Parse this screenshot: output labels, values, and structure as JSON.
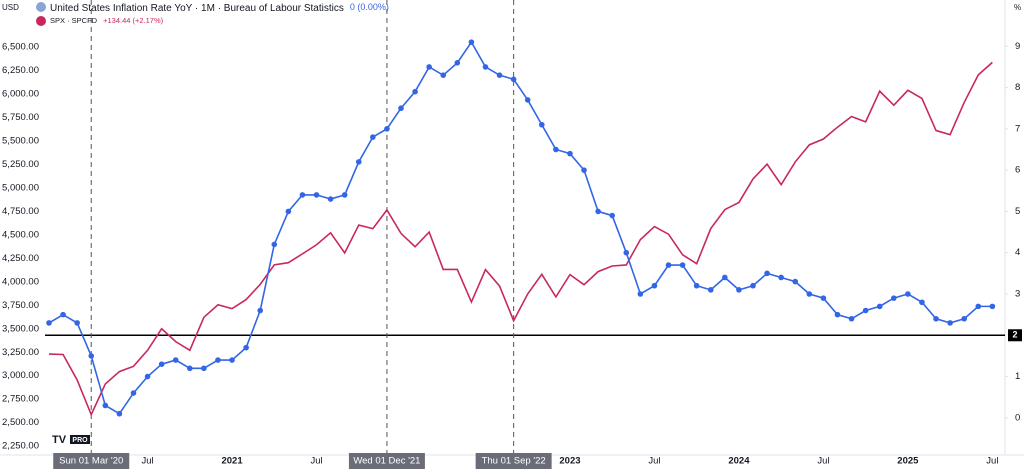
{
  "chart_data": {
    "type": "line",
    "y_unit": "USD",
    "y2_unit": "%",
    "categories": [
      null,
      null,
      null,
      "Sun 01 Mar '20",
      null,
      null,
      null,
      "Jul",
      null,
      null,
      null,
      null,
      null,
      "2021",
      null,
      null,
      null,
      null,
      null,
      "Jul",
      null,
      null,
      null,
      null,
      "Wed 01 Dec '21",
      null,
      null,
      null,
      null,
      null,
      null,
      null,
      null,
      "Thu 01 Sep '22",
      null,
      null,
      null,
      "2023",
      null,
      null,
      null,
      null,
      null,
      "Jul",
      null,
      null,
      null,
      null,
      null,
      "2024",
      null,
      null,
      null,
      null,
      null,
      "Jul",
      null,
      null,
      null,
      null,
      null,
      "2025",
      null,
      null,
      null,
      null,
      null,
      "Jul"
    ],
    "series": [
      {
        "name": "SPX · SPCFD",
        "change": "+134.44 (+2.17%)",
        "color": "#c8285f",
        "axis": "y",
        "values": [
          3231,
          3226,
          2954,
          2585,
          2912,
          3044,
          3100,
          3271,
          3500,
          3363,
          3270,
          3622,
          3756,
          3714,
          3811,
          3973,
          4181,
          4204,
          4298,
          4395,
          4523,
          4308,
          4605,
          4567,
          4766,
          4516,
          4374,
          4530,
          4132,
          4132,
          3785,
          4130,
          3955,
          3586,
          3872,
          4080,
          3840,
          4077,
          3970,
          4109,
          4169,
          4180,
          4450,
          4589,
          4508,
          4288,
          4194,
          4568,
          4770,
          4846,
          5096,
          5254,
          5036,
          5278,
          5460,
          5522,
          5648,
          5762,
          5705,
          6032,
          5882,
          6041,
          5955,
          5612,
          5569,
          5912,
          6205,
          6339
        ]
      },
      {
        "name": "United States Inflation Rate YoY · 1M · Bureau of Labour Statistics",
        "change": "0 (0.00%)",
        "color": "#3366e6",
        "axis": "y2",
        "values": [
          2.3,
          2.5,
          2.3,
          1.5,
          0.3,
          0.1,
          0.6,
          1.0,
          1.3,
          1.4,
          1.2,
          1.2,
          1.4,
          1.4,
          1.7,
          2.6,
          4.2,
          5.0,
          5.4,
          5.4,
          5.3,
          5.4,
          6.2,
          6.8,
          7.0,
          7.5,
          7.9,
          8.5,
          8.3,
          8.6,
          9.1,
          8.5,
          8.3,
          8.2,
          7.7,
          7.1,
          6.5,
          6.4,
          6.0,
          5.0,
          4.9,
          4.0,
          3.0,
          3.2,
          3.7,
          3.7,
          3.2,
          3.1,
          3.4,
          3.1,
          3.2,
          3.5,
          3.4,
          3.3,
          3.0,
          2.9,
          2.5,
          2.4,
          2.6,
          2.7,
          2.9,
          3.0,
          2.8,
          2.4,
          2.3,
          2.4,
          2.7,
          2.7
        ]
      }
    ],
    "ylim": [
      2155,
      6950
    ],
    "yticks": [
      {
        "value": 2250,
        "label": "2,250.00"
      },
      {
        "value": 2500,
        "label": "2,500.00"
      },
      {
        "value": 2750,
        "label": "2,750.00"
      },
      {
        "value": 3000,
        "label": "3,000.00"
      },
      {
        "value": 3250,
        "label": "3,250.00"
      },
      {
        "value": 3500,
        "label": "3,500.00"
      },
      {
        "value": 3750,
        "label": "3,750.00"
      },
      {
        "value": 4000,
        "label": "4,000.00"
      },
      {
        "value": 4250,
        "label": "4,250.00"
      },
      {
        "value": 4500,
        "label": "4,500.00"
      },
      {
        "value": 4750,
        "label": "4,750.00"
      },
      {
        "value": 5000,
        "label": "5,000.00"
      },
      {
        "value": 5250,
        "label": "5,250.00"
      },
      {
        "value": 5500,
        "label": "5,500.00"
      },
      {
        "value": 5750,
        "label": "5,750.00"
      },
      {
        "value": 6000,
        "label": "6,000.00"
      },
      {
        "value": 6250,
        "label": "6,250.00"
      },
      {
        "value": 6500,
        "label": "6,500.00"
      }
    ],
    "y2lim": [
      -0.9,
      10
    ],
    "y2ticks": [
      0,
      1,
      3,
      4,
      5,
      6,
      7,
      8,
      9
    ],
    "hline": {
      "value": 2,
      "axis": "y2",
      "color": "#000000"
    },
    "logo_text": "PRO"
  }
}
